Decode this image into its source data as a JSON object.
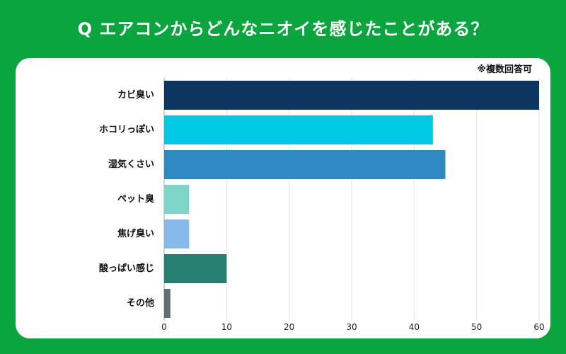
{
  "colors": {
    "background": "#0aa53f",
    "panel": "#ffffff",
    "title_text": "#ffffff",
    "grid": "#e2e2e2",
    "axis": "#a6a6a6"
  },
  "chart_data": {
    "type": "bar",
    "orientation": "horizontal",
    "title": "Q エアコンからどんなニオイを感じたことがある？",
    "annotation": "※複数回答可",
    "categories": [
      "カビ臭い",
      "ホコリっぽい",
      "湿気くさい",
      "ペット臭",
      "焦げ臭い",
      "酸っぱい感じ",
      "その他"
    ],
    "values": [
      60,
      43,
      45,
      4,
      4,
      10,
      1
    ],
    "bar_colors": [
      "#0c3561",
      "#00c9e5",
      "#2e8ac0",
      "#7fd5c8",
      "#87b9ea",
      "#277f6f",
      "#5f6e77"
    ],
    "xlim": [
      0,
      60
    ],
    "xticks": [
      0,
      10,
      20,
      30,
      40,
      50,
      60
    ],
    "grid": true,
    "xlabel": "",
    "ylabel": ""
  }
}
